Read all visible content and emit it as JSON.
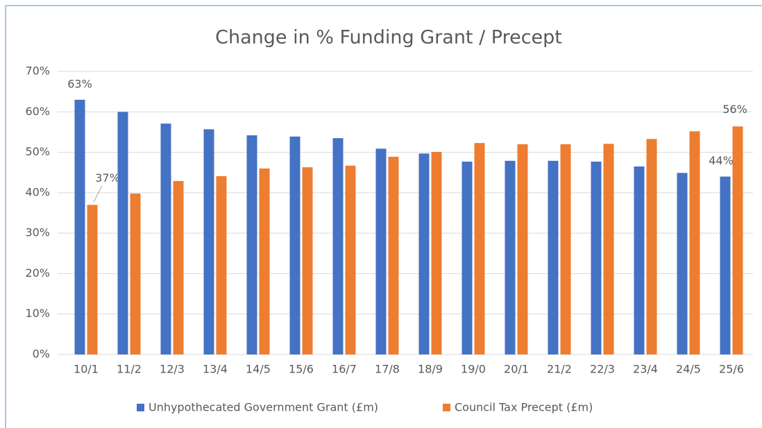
{
  "chart_data": {
    "type": "bar",
    "title": "Change in % Funding Grant / Precept",
    "categories": [
      "10/1",
      "11/2",
      "12/3",
      "13/4",
      "14/5",
      "15/6",
      "16/7",
      "17/8",
      "18/9",
      "19/0",
      "20/1",
      "21/2",
      "22/3",
      "23/4",
      "24/5",
      "25/6"
    ],
    "series": [
      {
        "name": "Unhypothecated Government Grant (£m)",
        "color": "#4472c4",
        "values": [
          63,
          60,
          57.1,
          55.7,
          54.2,
          53.9,
          53.5,
          50.9,
          49.7,
          47.7,
          47.9,
          47.9,
          47.7,
          46.5,
          44.9,
          44
        ],
        "value_labels": [
          "63%",
          null,
          null,
          null,
          null,
          null,
          null,
          null,
          null,
          null,
          null,
          null,
          null,
          null,
          null,
          "44%"
        ]
      },
      {
        "name": "Council Tax Precept (£m)",
        "color": "#ed7d31",
        "values": [
          37,
          39.8,
          42.9,
          44.1,
          46,
          46.3,
          46.7,
          48.9,
          50.1,
          52.3,
          52,
          52,
          52.1,
          53.3,
          55.2,
          56.4
        ],
        "value_labels": [
          "37%",
          null,
          null,
          null,
          null,
          null,
          null,
          null,
          null,
          null,
          null,
          null,
          null,
          null,
          null,
          "56%"
        ]
      }
    ],
    "ylim": [
      0,
      70
    ],
    "yticks": [
      {
        "value": 0,
        "label": "0%"
      },
      {
        "value": 10,
        "label": "10%"
      },
      {
        "value": 20,
        "label": "20%"
      },
      {
        "value": 30,
        "label": "30%"
      },
      {
        "value": 40,
        "label": "40%"
      },
      {
        "value": 50,
        "label": "50%"
      },
      {
        "value": 60,
        "label": "60%"
      },
      {
        "value": 70,
        "label": "70%"
      }
    ],
    "grid": true,
    "legend": "bottom"
  }
}
